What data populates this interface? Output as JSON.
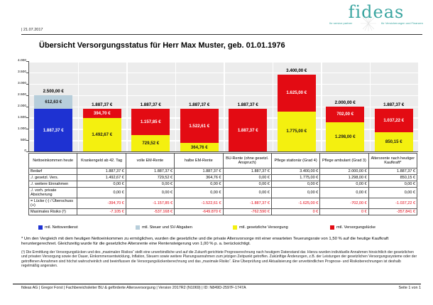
{
  "header": {
    "date": "| 21.07.2017",
    "logo": {
      "text": "fideas",
      "tagline_left": "Ihr service partner",
      "tagline_right": "für Versicherungen und Finanzen",
      "brand_color": "#3aa5a0"
    }
  },
  "title": "Übersicht Versorgungsstatus für Herr Max Muster, geb. 01.01.1976",
  "chart_data": {
    "type": "bar",
    "stacked": true,
    "title": "Übersicht Versorgungsstatus für Herr Max Muster, geb. 01.01.1976",
    "ylim": [
      0,
      4000
    ],
    "ytick_interval": 500,
    "yticks": [
      "4.000",
      "3.500",
      "3.000",
      "2.500",
      "2.000",
      "1.500",
      "1.000",
      "500",
      "0"
    ],
    "grid": true,
    "legend_position": "bottom",
    "categories": [
      "Nettoeinkommen heute",
      "Krankengeld ab 42. Tag",
      "volle EM-Rente",
      "halbe EM-Rente",
      "BU-Rente (ohne gesetzl. Anspruch)",
      "Pflege stationär (Grad 4)",
      "Pflege ambulant (Grad 3)",
      "Altersrente nach heutiger Kaufkraft*"
    ],
    "series": [
      {
        "name": "mtl. Nettoverdienst",
        "color": "#1e32d2",
        "label_color": "#ffffff"
      },
      {
        "name": "mtl. Steuer und SV-Abgaben",
        "color": "#b7cedb",
        "label_color": "#1a1a1a"
      },
      {
        "name": "mtl. gesetzliche Versorgung",
        "color": "#f4f00f",
        "label_color": "#1a1a1a"
      },
      {
        "name": "mtl. Versorgungslücke",
        "color": "#e30b13",
        "label_color": "#ffffff"
      }
    ],
    "bars": [
      {
        "category": "Nettoeinkommen heute",
        "total_label": "2.500,00 €",
        "segments": [
          {
            "s": 0,
            "value": 1887.37,
            "label": "1.887,37 €"
          },
          {
            "s": 1,
            "value": 612.63,
            "label": "612,63 €"
          }
        ]
      },
      {
        "category": "Krankengeld ab 42. Tag",
        "total_label": "1.887,37 €",
        "segments": [
          {
            "s": 2,
            "value": 1492.67,
            "label": "1.492,67 €"
          },
          {
            "s": 3,
            "value": 394.7,
            "label": "394,70 €"
          }
        ]
      },
      {
        "category": "volle EM-Rente",
        "total_label": "1.887,37 €",
        "segments": [
          {
            "s": 2,
            "value": 729.52,
            "label": "729,52 €"
          },
          {
            "s": 3,
            "value": 1157.85,
            "label": "1.157,85 €"
          }
        ]
      },
      {
        "category": "halbe EM-Rente",
        "total_label": "1.887,37 €",
        "segments": [
          {
            "s": 2,
            "value": 364.76,
            "label": "364,76 €"
          },
          {
            "s": 3,
            "value": 1522.61,
            "label": "1.522,61 €"
          }
        ]
      },
      {
        "category": "BU-Rente (ohne gesetzl. Anspruch)",
        "total_label": "1.887,37 €",
        "segments": [
          {
            "s": 3,
            "value": 1887.37,
            "label": "1.887,37 €"
          }
        ]
      },
      {
        "category": "Pflege stationär (Grad 4)",
        "total_label": "3.400,00 €",
        "segments": [
          {
            "s": 2,
            "value": 1775.0,
            "label": "1.775,00 €"
          },
          {
            "s": 3,
            "value": 1625.0,
            "label": "1.625,00 €"
          }
        ]
      },
      {
        "category": "Pflege ambulant (Grad 3)",
        "total_label": "2.000,00 €",
        "segments": [
          {
            "s": 2,
            "value": 1298.0,
            "label": "1.298,00 €"
          },
          {
            "s": 3,
            "value": 702.0,
            "label": "702,00 €"
          }
        ]
      },
      {
        "category": "Altersrente nach heutiger Kaufkraft*",
        "total_label": "1.887,37 €",
        "segments": [
          {
            "s": 2,
            "value": 850.15,
            "label": "850,15 €"
          },
          {
            "s": 3,
            "value": 1037.22,
            "label": "1.037,22 €"
          }
        ]
      }
    ]
  },
  "table": {
    "col0_header": "Nettoeinkommen heute",
    "headers": [
      "Krankengeld ab 42. Tag",
      "volle EM-Rente",
      "halbe EM-Rente",
      "BU-Rente (ohne gesetzl. Anspruch)",
      "Pflege stationär (Grad 4)",
      "Pflege ambulant (Grad 3)",
      "Altersrente nach heutiger Kaufkraft*"
    ],
    "rows": [
      {
        "label": "Bedarf",
        "values": [
          "1.887,37 €",
          "1.887,37 €",
          "1.887,37 €",
          "1.887,37 €",
          "3.400,00 €",
          "2.000,00 €",
          "1.887,37 €"
        ]
      },
      {
        "label": "./. gesetzl. Vers.",
        "values": [
          "1.492,67 €",
          "729,52 €",
          "364,76 €",
          "0,00 €",
          "1.775,00 €",
          "1.298,00 €",
          "850,15 €"
        ]
      },
      {
        "label": "./. weitere Einnahmen",
        "values": [
          "0,00 €",
          "0,00 €",
          "0,00 €",
          "0,00 €",
          "0,00 €",
          "0,00 €",
          "0,00 €"
        ]
      },
      {
        "label": "./. vorh. private Absicherung",
        "values": [
          "0,00 €",
          "0,00 €",
          "0,00 €",
          "0,00 €",
          "0,00 €",
          "0,00 €",
          "0,00 €"
        ]
      },
      {
        "label": "= Lücke (-) / Überschuss (+)",
        "values": [
          "-394,70 €",
          "-1.157,85 €",
          "-1.522,61 €",
          "-1.887,37 €",
          "-1.625,00 €",
          "-702,00 €",
          "-1.037,22 €"
        ]
      },
      {
        "label": "Maximales Risiko (²)",
        "values": [
          "-7.105 €",
          "-537.168 €",
          "-649.870 €",
          "-762.590 €",
          "0 €",
          "0 €",
          "-357.841 €"
        ]
      }
    ]
  },
  "footnotes": {
    "f1": "* Um den Vergleich mit dem heutigen Nettoeinkommen zu ermöglichen, wurden die gesetzliche und die private Altersvorsorge mit einer erwarteten Teuerungsrate von 1,50 % auf die heutige Kaufkraft heruntergerechnet. Gleichzeitig wurde für die gesetzliche Altersrente eine Rentensteigerung von 1,00 % p. a. berücksichtigt.",
    "f2": "(²) Die Ermittlung der Versorgungslücken und des „maximalen Risikos“ stellt eine unverbindliche und auf die Zukunft gerichtete Prognoserechnung nach heutigem Datenstand dar. Hierzu wurden individuelle Annahmen hinsichtlich der gesetzlichen und privaten Versorgung sowie der Dauer, Einkommensentwicklung, Inflation, Steuern sowie weitere Planungsannahmen zum jetzigen Zeitpunkt getroffen. Zukünftige Änderungen, z.B. der Leistungen der gesetzlichen Versorgungssysteme oder der getroffenen Annahmen sind höchst wahrscheinlich und beeinflussen die Versorgungslückenberechnung und das „maximale Risiko“. Eine Überprüfung und Aktualisierung der unverbindlichen Prognose- und Risikoberechnungen ist deshalb regelmäßig angeraten."
  },
  "footer": {
    "left": "fideas AG | Gregor Forst | Fachbereichsleiter BU & geförderte Altersversorgung | Version 2017R2 (N1069) | ID: N849D-2597F-1747A",
    "right": "Seite 1 von 1"
  }
}
